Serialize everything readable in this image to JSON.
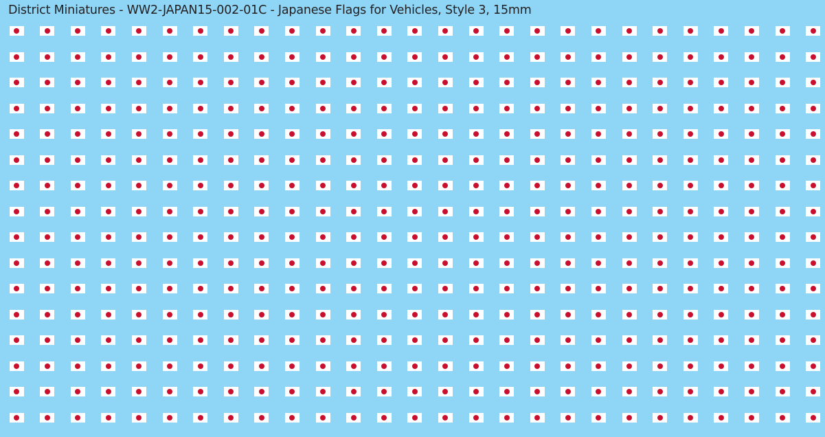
{
  "title": "District Miniatures - WW2-JAPAN15-002-01C - Japanese Flags for Vehicles, Style 3, 15mm",
  "sheet": {
    "rows": 16,
    "columns": 27,
    "decal": "japanese-flag-icon",
    "colors": {
      "background": "#8fd5f6",
      "flag_field": "#ffffff",
      "sun_disc": "#c8102e",
      "title_text": "#231f20"
    }
  }
}
